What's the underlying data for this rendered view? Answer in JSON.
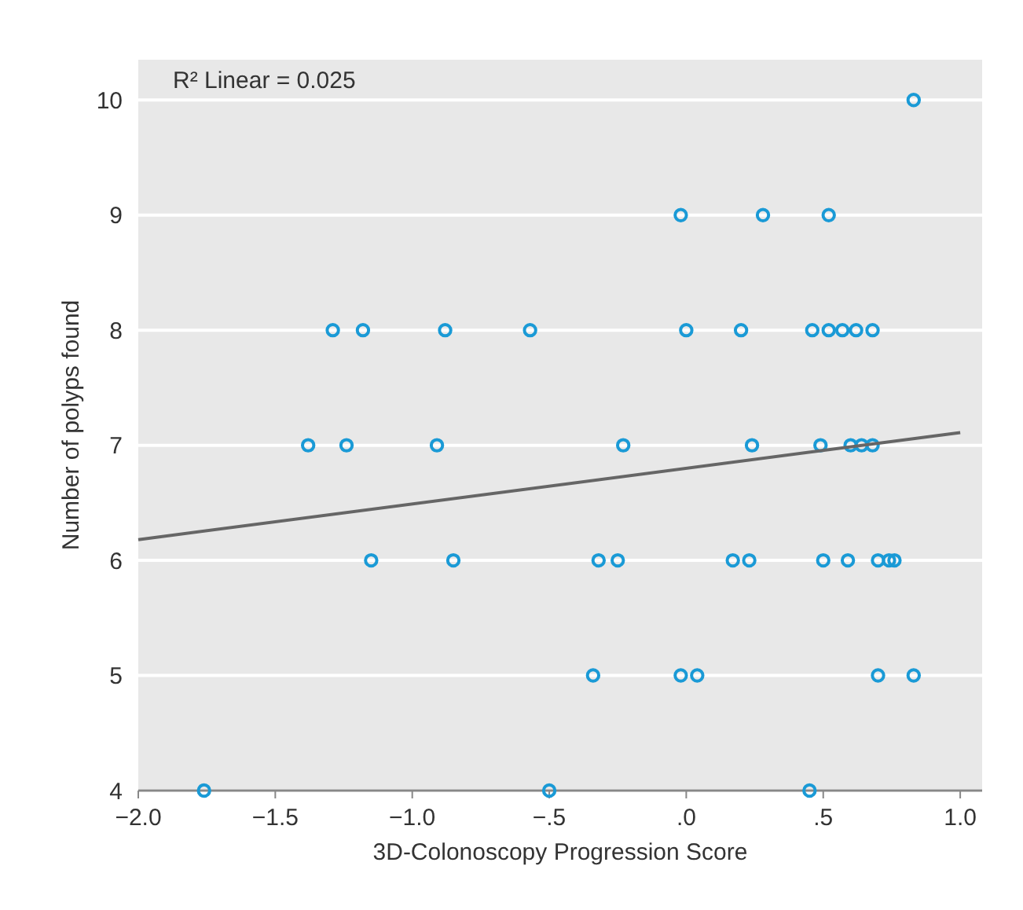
{
  "chart_data": {
    "type": "scatter",
    "xlabel": "3D-Colonoscopy Progression Score",
    "ylabel": "Number of polyps found",
    "annotations": [
      "R² Linear = 0.025"
    ],
    "xlim": [
      -2,
      1.08
    ],
    "ylim": [
      4,
      10.35
    ],
    "xticks": [
      {
        "value": -2,
        "label": "−2.0"
      },
      {
        "value": -1.5,
        "label": "−1.5"
      },
      {
        "value": -1,
        "label": "−1.0"
      },
      {
        "value": -0.5,
        "label": "−.5"
      },
      {
        "value": 0,
        "label": ".0"
      },
      {
        "value": 0.5,
        "label": ".5"
      },
      {
        "value": 1,
        "label": "1.0"
      }
    ],
    "yticks": [
      4,
      5,
      6,
      7,
      8,
      9,
      10
    ],
    "grid": "y",
    "marker": "circle",
    "series": [
      {
        "color": "#1a9ad6",
        "x": [
          0.83,
          -0.02,
          0.28,
          0.52,
          -1.29,
          -1.18,
          -0.88,
          -0.57,
          0.0,
          0.2,
          0.46,
          0.52,
          0.57,
          0.62,
          0.68,
          -1.38,
          -1.24,
          -0.91,
          -0.23,
          0.24,
          0.49,
          0.6,
          0.64,
          0.68,
          -1.15,
          -0.85,
          -0.32,
          -0.25,
          0.17,
          0.23,
          0.5,
          0.59,
          0.7,
          0.74,
          0.76,
          -0.34,
          -0.02,
          0.04,
          0.7,
          0.83,
          -1.76,
          -0.5,
          0.45
        ],
        "values": [
          10,
          9,
          9,
          9,
          8,
          8,
          8,
          8,
          8,
          8,
          8,
          8,
          8,
          8,
          8,
          7,
          7,
          7,
          7,
          7,
          7,
          7,
          7,
          7,
          6,
          6,
          6,
          6,
          6,
          6,
          6,
          6,
          6,
          6,
          6,
          5,
          5,
          5,
          5,
          5,
          4,
          4,
          4
        ]
      },
      {
        "type": "line",
        "color": "#666666",
        "x": [
          -2,
          1
        ],
        "values": [
          6.18,
          7.11
        ],
        "marker": "none",
        "line_style": "solid"
      }
    ]
  }
}
